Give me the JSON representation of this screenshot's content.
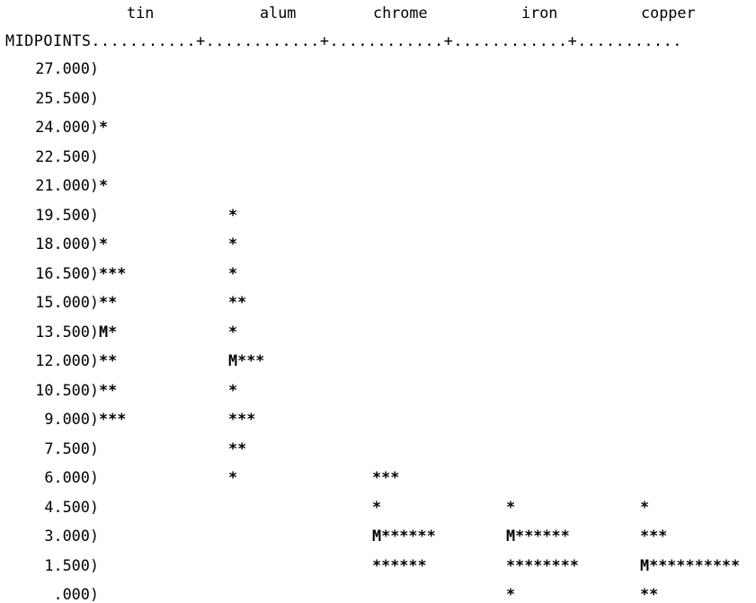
{
  "chart_data": {
    "type": "bar",
    "orientation": "horizontal",
    "title": "",
    "ylabel": "MIDPOINTS",
    "axis_line": "MIDPOINTS...........+............+............+............+...........",
    "series": [
      {
        "name": "tin",
        "bars": [
          "",
          "",
          "*",
          "",
          "*",
          "",
          "*",
          "***",
          "**",
          "M*",
          "**",
          "**",
          "***",
          "",
          "",
          "",
          "",
          "",
          ""
        ],
        "counts": [
          0,
          0,
          1,
          0,
          1,
          0,
          1,
          3,
          2,
          1,
          2,
          2,
          3,
          0,
          0,
          0,
          0,
          0,
          0
        ],
        "median_midpoint": 13.5
      },
      {
        "name": "alum",
        "bars": [
          "",
          "",
          "",
          "",
          "",
          "*",
          "*",
          "*",
          "**",
          "*",
          "M***",
          "*",
          "***",
          "**",
          "*",
          "",
          "",
          "",
          ""
        ],
        "counts": [
          0,
          0,
          0,
          0,
          0,
          1,
          1,
          1,
          2,
          1,
          3,
          1,
          3,
          2,
          1,
          0,
          0,
          0,
          0
        ],
        "median_midpoint": 12.0
      },
      {
        "name": "chrome",
        "bars": [
          "",
          "",
          "",
          "",
          "",
          "",
          "",
          "",
          "",
          "",
          "",
          "",
          "",
          "",
          "***",
          "*",
          "M******",
          "******",
          ""
        ],
        "counts": [
          0,
          0,
          0,
          0,
          0,
          0,
          0,
          0,
          0,
          0,
          0,
          0,
          0,
          0,
          3,
          1,
          6,
          6,
          0
        ],
        "median_midpoint": 3.0
      },
      {
        "name": "iron",
        "bars": [
          "",
          "",
          "",
          "",
          "",
          "",
          "",
          "",
          "",
          "",
          "",
          "",
          "",
          "",
          "",
          "*",
          "M******",
          "********",
          "*"
        ],
        "counts": [
          0,
          0,
          0,
          0,
          0,
          0,
          0,
          0,
          0,
          0,
          0,
          0,
          0,
          0,
          0,
          1,
          6,
          8,
          1
        ],
        "median_midpoint": 3.0
      },
      {
        "name": "copper",
        "bars": [
          "",
          "",
          "",
          "",
          "",
          "",
          "",
          "",
          "",
          "",
          "",
          "",
          "",
          "",
          "",
          "*",
          "***",
          "M**********",
          "**"
        ],
        "counts": [
          0,
          0,
          0,
          0,
          0,
          0,
          0,
          0,
          0,
          0,
          0,
          0,
          0,
          0,
          0,
          1,
          3,
          10,
          2
        ],
        "median_midpoint": 1.5
      }
    ],
    "midpoints": [
      "27.000)",
      "25.500)",
      "24.000)",
      "22.500)",
      "21.000)",
      "19.500)",
      "18.000)",
      "16.500)",
      "15.000)",
      "13.500)",
      "12.000)",
      "10.500)",
      " 9.000)",
      " 7.500)",
      " 6.000)",
      " 4.500)",
      " 3.000)",
      " 1.500)",
      "  .000)"
    ],
    "midpoint_values": [
      27.0,
      25.5,
      24.0,
      22.5,
      21.0,
      19.5,
      18.0,
      16.5,
      15.0,
      13.5,
      12.0,
      10.5,
      9.0,
      7.5,
      6.0,
      4.5,
      3.0,
      1.5,
      0.0
    ],
    "grid": false,
    "legend": "none"
  }
}
